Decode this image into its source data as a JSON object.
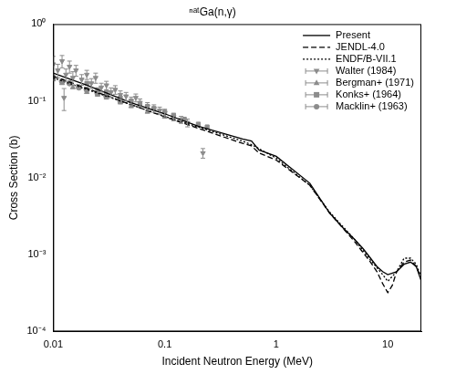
{
  "chart_data": {
    "type": "line",
    "title": "ⁿᵃᵗGa(n,γ)",
    "x_label": "Incident Neutron Energy (MeV)",
    "y_label": "Cross Section (b)",
    "log": true,
    "grid": false,
    "legend": "upper right",
    "xlim": [
      0.01,
      20
    ],
    "xticks": [
      0.01,
      0.1,
      1,
      10
    ],
    "ylim": [
      0.0001,
      1
    ],
    "yticks": [
      {
        "value": 0.0001,
        "label": "10⁻⁴"
      },
      {
        "value": 0.001,
        "label": "10⁻³"
      },
      {
        "value": 0.01,
        "label": "10⁻²"
      },
      {
        "value": 0.1,
        "label": "10⁻¹"
      },
      {
        "value": 1,
        "label": "10⁰"
      }
    ],
    "series": [
      {
        "name": "Present",
        "type": "line",
        "line_style": "solid",
        "color": "#000000",
        "x": [
          0.01,
          0.02,
          0.05,
          0.1,
          0.2,
          0.5,
          0.6,
          0.7,
          1,
          2,
          3,
          4,
          5,
          6,
          7,
          8,
          9,
          10,
          12,
          14,
          16,
          18,
          20
        ],
        "values": [
          0.23,
          0.16,
          0.095,
          0.068,
          0.047,
          0.032,
          0.03,
          0.023,
          0.019,
          0.0085,
          0.0035,
          0.0022,
          0.0016,
          0.0012,
          0.0009,
          0.0007,
          0.0006,
          0.00055,
          0.0006,
          0.00075,
          0.0008,
          0.0007,
          0.00045
        ]
      },
      {
        "name": "JENDL-4.0",
        "type": "line",
        "line_style": "dashed",
        "color": "#000000",
        "x": [
          0.01,
          0.1,
          0.5,
          0.6,
          0.7,
          1,
          2,
          3,
          5,
          7,
          8,
          9,
          10,
          11,
          12,
          14,
          16,
          18,
          20
        ],
        "values": [
          0.21,
          0.062,
          0.028,
          0.026,
          0.021,
          0.017,
          0.008,
          0.0035,
          0.0015,
          0.0008,
          0.0006,
          0.00042,
          0.00032,
          0.0004,
          0.0006,
          0.0008,
          0.00085,
          0.0007,
          0.0005
        ]
      },
      {
        "name": "ENDF/B-VII.1",
        "type": "line",
        "line_style": "dotted",
        "color": "#000000",
        "x": [
          0.01,
          0.1,
          0.5,
          0.6,
          1,
          2,
          3,
          5,
          7,
          9,
          10,
          12,
          14,
          16,
          18,
          20
        ],
        "values": [
          0.2,
          0.063,
          0.03,
          0.027,
          0.018,
          0.008,
          0.0036,
          0.0016,
          0.00085,
          0.00055,
          0.00045,
          0.0006,
          0.0009,
          0.0009,
          0.00075,
          0.0005
        ]
      },
      {
        "name": "Walter (1984)",
        "type": "scatter",
        "marker": "triangle_down",
        "color": "#8c8c8c",
        "x": [
          0.01,
          0.011,
          0.012,
          0.0125,
          0.013,
          0.014,
          0.015,
          0.016,
          0.018,
          0.02,
          0.022,
          0.024,
          0.027,
          0.03,
          0.033,
          0.036,
          0.04,
          0.045,
          0.05,
          0.055,
          0.06,
          0.07,
          0.08,
          0.09,
          0.1,
          0.12,
          0.14,
          0.16,
          0.22
        ],
        "values": [
          0.3,
          0.25,
          0.33,
          0.11,
          0.22,
          0.28,
          0.2,
          0.25,
          0.19,
          0.22,
          0.17,
          0.2,
          0.15,
          0.16,
          0.13,
          0.14,
          0.12,
          0.115,
          0.1,
          0.11,
          0.095,
          0.085,
          0.08,
          0.075,
          0.07,
          0.062,
          0.057,
          0.052,
          0.021
        ],
        "errors": [
          0.08,
          0.05,
          0.06,
          0.035,
          0.04,
          0.05,
          0.04,
          0.04,
          0.03,
          0.03,
          0.025,
          0.03,
          0.02,
          0.02,
          0.018,
          0.018,
          0.015,
          0.014,
          0.012,
          0.013,
          0.011,
          0.01,
          0.009,
          0.008,
          0.008,
          0.007,
          0.006,
          0.006,
          0.003
        ]
      },
      {
        "name": "Bergman+ (1971)",
        "type": "scatter",
        "marker": "triangle",
        "color": "#8c8c8c",
        "x": [
          0.01,
          0.012,
          0.015,
          0.02,
          0.025,
          0.03,
          0.04,
          0.05,
          0.07,
          0.1
        ],
        "values": [
          0.19,
          0.17,
          0.15,
          0.13,
          0.12,
          0.11,
          0.095,
          0.085,
          0.072,
          0.062
        ]
      },
      {
        "name": "Konks+ (1964)",
        "type": "scatter",
        "marker": "square",
        "color": "#8c8c8c",
        "x": [
          0.02,
          0.025,
          0.03,
          0.04,
          0.05,
          0.06,
          0.07,
          0.08,
          0.1,
          0.12,
          0.15,
          0.2,
          0.24
        ],
        "values": [
          0.17,
          0.14,
          0.13,
          0.11,
          0.1,
          0.09,
          0.085,
          0.08,
          0.072,
          0.065,
          0.058,
          0.05,
          0.046
        ]
      },
      {
        "name": "Macklin+ (1963)",
        "type": "scatter",
        "marker": "circle",
        "color": "#8c8c8c",
        "x": [
          0.01,
          0.012,
          0.014,
          0.017,
          0.02,
          0.025,
          0.03,
          0.04
        ],
        "values": [
          0.2,
          0.18,
          0.17,
          0.15,
          0.14,
          0.125,
          0.115,
          0.1
        ]
      }
    ]
  }
}
